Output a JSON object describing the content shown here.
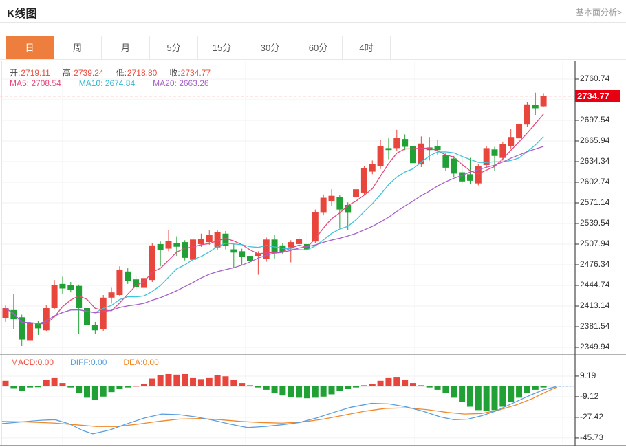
{
  "header": {
    "title": "K线图",
    "link": "基本面分析>"
  },
  "tabs": {
    "items": [
      {
        "label": "日",
        "active": true
      },
      {
        "label": "周"
      },
      {
        "label": "月"
      },
      {
        "label": "5分"
      },
      {
        "label": "15分"
      },
      {
        "label": "30分"
      },
      {
        "label": "60分"
      },
      {
        "label": "4时"
      }
    ]
  },
  "ohlc": {
    "open_label": "开:",
    "open_value": "2719.11",
    "high_label": "高:",
    "high_value": "2739.24",
    "low_label": "低:",
    "low_value": "2718.80",
    "close_label": "收:",
    "close_value": "2734.77"
  },
  "ma": {
    "ma5_label": "MA5:",
    "ma5_value": "2708.54",
    "ma10_label": "MA10:",
    "ma10_value": "2674.84",
    "ma20_label": "MA20:",
    "ma20_value": "2663.26"
  },
  "macd_header": {
    "macd": "MACD:0.00",
    "diff": "DIFF:0.00",
    "dea": "DEA:0.00"
  },
  "price_tag": "2734.77",
  "colors": {
    "up": "#e8453c",
    "down": "#21a135",
    "ma5": "#e8487c",
    "ma10": "#3fc3d8",
    "ma20": "#a55fc8",
    "diff": "#5b9fe0",
    "dea": "#f0882a",
    "diff_dotted": "#b9d7f2",
    "tab_accent": "#ee7e3e",
    "tag_bg": "#e60012",
    "dashed_line": "#f0443c",
    "grid": "#f0f0f0",
    "axis_line": "#4a4a4a"
  },
  "chart_data": {
    "type": "candlestick",
    "title": "K线图 (daily candlesticks with MA5/MA10/MA20 and MACD)",
    "legend_position": "top-left",
    "grid": true,
    "price_axis": {
      "max": 2760.74,
      "min": 2349.94,
      "interval": 31.6,
      "tick_labels": [
        "2760.74",
        "2729.14",
        "2697.54",
        "2665.94",
        "2634.34",
        "2602.74",
        "2571.14",
        "2539.54",
        "2507.94",
        "2476.34",
        "2444.74",
        "2413.14",
        "2381.54",
        "2349.94"
      ]
    },
    "last_price": 2734.77,
    "last_candle_ohlc": {
      "open": 2719.11,
      "high": 2739.24,
      "low": 2718.8,
      "close": 2734.77
    },
    "ma_values": {
      "ma5": 2708.54,
      "ma10": 2674.84,
      "ma20": 2663.26
    },
    "candles": [
      [
        2395,
        2410,
        2389,
        2414,
        "r"
      ],
      [
        2393,
        2407,
        2378,
        2431,
        "g"
      ],
      [
        2362,
        2396,
        2352,
        2400,
        "g"
      ],
      [
        2360,
        2387,
        2355,
        2392,
        "r"
      ],
      [
        2379,
        2386,
        2369,
        2390,
        "g"
      ],
      [
        2376,
        2410,
        2374,
        2415,
        "r"
      ],
      [
        2410,
        2445,
        2408,
        2453,
        "r"
      ],
      [
        2440,
        2447,
        2432,
        2458,
        "g"
      ],
      [
        2438,
        2445,
        2434,
        2450,
        "g"
      ],
      [
        2410,
        2444,
        2371,
        2446,
        "g"
      ],
      [
        2384,
        2410,
        2380,
        2414,
        "g"
      ],
      [
        2376,
        2384,
        2370,
        2389,
        "g"
      ],
      [
        2378,
        2426,
        2375,
        2430,
        "r"
      ],
      [
        2426,
        2434,
        2417,
        2441,
        "r"
      ],
      [
        2430,
        2469,
        2428,
        2474,
        "r"
      ],
      [
        2452,
        2466,
        2447,
        2471,
        "g"
      ],
      [
        2442,
        2454,
        2438,
        2459,
        "g"
      ],
      [
        2441,
        2456,
        2437,
        2461,
        "r"
      ],
      [
        2453,
        2506,
        2450,
        2510,
        "r"
      ],
      [
        2499,
        2508,
        2474,
        2512,
        "g"
      ],
      [
        2501,
        2513,
        2497,
        2529,
        "r"
      ],
      [
        2504,
        2510,
        2490,
        2520,
        "g"
      ],
      [
        2487,
        2511,
        2483,
        2514,
        "g"
      ],
      [
        2484,
        2515,
        2480,
        2519,
        "r"
      ],
      [
        2508,
        2516,
        2504,
        2524,
        "r"
      ],
      [
        2511,
        2522,
        2507,
        2529,
        "r"
      ],
      [
        2503,
        2526,
        2499,
        2530,
        "r"
      ],
      [
        2505,
        2524,
        2500,
        2528,
        "g"
      ],
      [
        2495,
        2500,
        2471,
        2509,
        "g"
      ],
      [
        2488,
        2497,
        2476,
        2501,
        "g"
      ],
      [
        2482,
        2490,
        2468,
        2494,
        "g"
      ],
      [
        2490,
        2494,
        2461,
        2497,
        "r"
      ],
      [
        2485,
        2515,
        2481,
        2518,
        "r"
      ],
      [
        2494,
        2515,
        2486,
        2522,
        "g"
      ],
      [
        2496,
        2506,
        2492,
        2510,
        "g"
      ],
      [
        2503,
        2511,
        2480,
        2514,
        "r"
      ],
      [
        2508,
        2516,
        2504,
        2520,
        "r"
      ],
      [
        2500,
        2508,
        2496,
        2527,
        "g"
      ],
      [
        2512,
        2557,
        2509,
        2561,
        "r"
      ],
      [
        2556,
        2579,
        2552,
        2584,
        "r"
      ],
      [
        2574,
        2582,
        2566,
        2592,
        "r"
      ],
      [
        2561,
        2580,
        2532,
        2583,
        "g"
      ],
      [
        2556,
        2568,
        2530,
        2572,
        "g"
      ],
      [
        2580,
        2592,
        2576,
        2596,
        "r"
      ],
      [
        2587,
        2624,
        2583,
        2628,
        "r"
      ],
      [
        2619,
        2631,
        2615,
        2636,
        "r"
      ],
      [
        2627,
        2658,
        2623,
        2668,
        "r"
      ],
      [
        2652,
        2655,
        2638,
        2670,
        "g"
      ],
      [
        2655,
        2671,
        2651,
        2683,
        "r"
      ],
      [
        2657,
        2669,
        2652,
        2676,
        "g"
      ],
      [
        2632,
        2658,
        2626,
        2662,
        "g"
      ],
      [
        2630,
        2662,
        2626,
        2673,
        "r"
      ],
      [
        2652,
        2656,
        2636,
        2672,
        "g"
      ],
      [
        2652,
        2658,
        2645,
        2668,
        "g"
      ],
      [
        2625,
        2644,
        2620,
        2648,
        "g"
      ],
      [
        2616,
        2639,
        2610,
        2643,
        "g"
      ],
      [
        2604,
        2618,
        2599,
        2645,
        "g"
      ],
      [
        2605,
        2615,
        2600,
        2640,
        "g"
      ],
      [
        2601,
        2627,
        2598,
        2631,
        "r"
      ],
      [
        2629,
        2655,
        2625,
        2658,
        "r"
      ],
      [
        2643,
        2653,
        2620,
        2657,
        "g"
      ],
      [
        2640,
        2661,
        2636,
        2665,
        "r"
      ],
      [
        2658,
        2672,
        2654,
        2684,
        "r"
      ],
      [
        2670,
        2692,
        2666,
        2696,
        "r"
      ],
      [
        2691,
        2722,
        2687,
        2725,
        "r"
      ],
      [
        2716,
        2721,
        2706,
        2740,
        "g"
      ],
      [
        2719.11,
        2734.77,
        2718.8,
        2739.24,
        "r"
      ]
    ],
    "macd": {
      "last_values": {
        "macd": 0.0,
        "diff": 0.0,
        "dea": 0.0
      },
      "axis_ticks": [
        9.19,
        -9.12,
        -27.42,
        -45.73
      ],
      "axis_tick_labels": [
        "9.19",
        "-9.12",
        "-27.42",
        "-45.73"
      ],
      "histogram": [
        5,
        -1.5,
        -4,
        -1,
        -0.8,
        6,
        8,
        3,
        -1,
        -6,
        -10,
        -12,
        -9,
        -5,
        -2,
        -1,
        0.5,
        2,
        7,
        10,
        11,
        10.5,
        11,
        8,
        6.5,
        8,
        10,
        9,
        6,
        3,
        1,
        -1,
        -3,
        -5.5,
        -8,
        -9.5,
        -10,
        -10.5,
        -10,
        -9,
        -7,
        -4,
        -2,
        -1,
        1,
        2,
        5,
        8,
        8.5,
        6,
        3,
        1,
        -1,
        -3,
        -6,
        -10,
        -14,
        -18,
        -21,
        -22,
        -21,
        -18,
        -14,
        -10,
        -6,
        -3,
        -1
      ],
      "diff_line": [
        [
          2,
          -33
        ],
        [
          30,
          -31.5
        ],
        [
          60,
          -30
        ],
        [
          80,
          -29.5
        ],
        [
          100,
          -33
        ],
        [
          120,
          -39
        ],
        [
          135,
          -42
        ],
        [
          160,
          -38.5
        ],
        [
          185,
          -33
        ],
        [
          210,
          -28
        ],
        [
          235,
          -24.5
        ],
        [
          260,
          -25
        ],
        [
          285,
          -27
        ],
        [
          310,
          -30
        ],
        [
          335,
          -33.5
        ],
        [
          360,
          -36.5
        ],
        [
          385,
          -35.5
        ],
        [
          410,
          -34
        ],
        [
          435,
          -32
        ],
        [
          460,
          -28
        ],
        [
          485,
          -23
        ],
        [
          510,
          -18.5
        ],
        [
          540,
          -15
        ],
        [
          565,
          -15.5
        ],
        [
          590,
          -18
        ],
        [
          615,
          -22
        ],
        [
          640,
          -27
        ],
        [
          660,
          -29.5
        ],
        [
          680,
          -29
        ],
        [
          700,
          -26
        ],
        [
          720,
          -22
        ],
        [
          745,
          -15
        ],
        [
          770,
          -8
        ],
        [
          790,
          -3
        ],
        [
          808,
          -0.3
        ]
      ],
      "dea_line": [
        [
          2,
          -31
        ],
        [
          40,
          -31.5
        ],
        [
          80,
          -32.5
        ],
        [
          110,
          -34
        ],
        [
          140,
          -35.5
        ],
        [
          170,
          -35.5
        ],
        [
          200,
          -33.5
        ],
        [
          230,
          -31
        ],
        [
          260,
          -29
        ],
        [
          290,
          -28.5
        ],
        [
          320,
          -29.5
        ],
        [
          350,
          -31
        ],
        [
          380,
          -32
        ],
        [
          410,
          -32.5
        ],
        [
          440,
          -31.5
        ],
        [
          470,
          -29
        ],
        [
          500,
          -25.5
        ],
        [
          530,
          -22
        ],
        [
          560,
          -19.5
        ],
        [
          590,
          -19
        ],
        [
          620,
          -20.5
        ],
        [
          650,
          -23
        ],
        [
          675,
          -24.5
        ],
        [
          700,
          -24
        ],
        [
          725,
          -21
        ],
        [
          750,
          -16.5
        ],
        [
          775,
          -10.5
        ],
        [
          795,
          -4.5
        ],
        [
          810,
          -0.5
        ]
      ],
      "diff_dotted_extension": [
        [
          808,
          -0.3
        ],
        [
          835,
          0
        ]
      ]
    },
    "vertical_gridlines_x": [
      91,
      357,
      603,
      818
    ]
  }
}
